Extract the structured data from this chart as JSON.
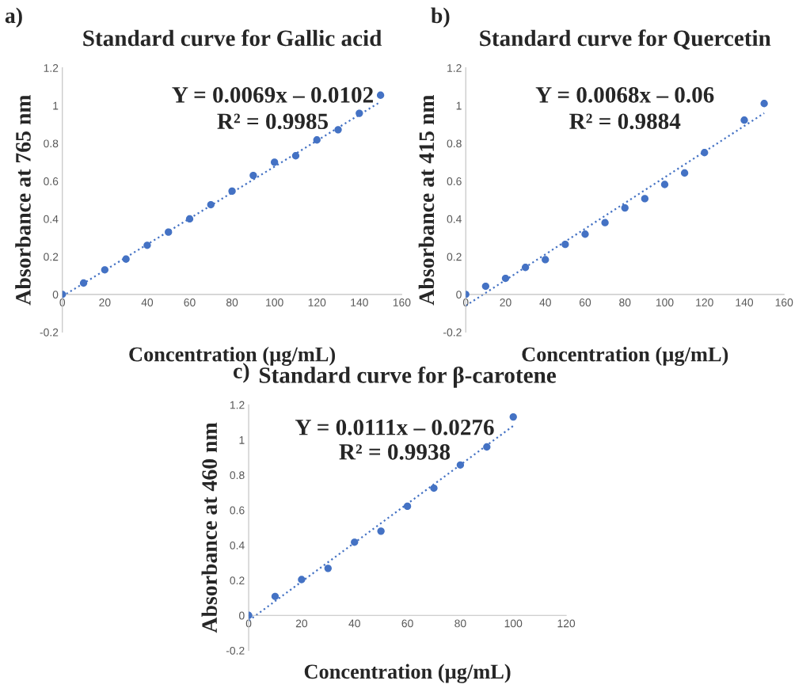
{
  "chart_data": [
    {
      "type": "scatter",
      "title": "Standard curve for Gallic acid",
      "xlabel": "Concentration (µg/mL)",
      "ylabel": "Absorbance at 765 nm",
      "annotations": [
        "a)",
        "Y = 0.0069x – 0.0102",
        "R² = 0.9985"
      ],
      "series": [
        {
          "color": "#4472c4",
          "marker": "circle",
          "x": [
            0,
            10,
            20,
            30,
            40,
            50,
            60,
            70,
            80,
            90,
            100,
            110,
            120,
            130,
            140,
            150
          ],
          "values": [
            0,
            0.06,
            0.13,
            0.187,
            0.26,
            0.33,
            0.4,
            0.475,
            0.547,
            0.63,
            0.7,
            0.734,
            0.818,
            0.872,
            0.959,
            1.055
          ]
        },
        {
          "type": "line",
          "color": "#4472c4",
          "line_style": "dotted",
          "x": [
            0,
            150
          ],
          "values": [
            -0.01,
            1.02
          ]
        }
      ],
      "xlim": [
        0,
        160
      ],
      "xticks": [
        0,
        20,
        40,
        60,
        80,
        100,
        120,
        140,
        160
      ],
      "ylim": [
        -0.2,
        1.2
      ],
      "yticks": [
        -0.2,
        0,
        0.2,
        0.4,
        0.6,
        0.8,
        1,
        1.2
      ],
      "grid": false
    },
    {
      "type": "scatter",
      "title": "Standard curve for Quercetin",
      "xlabel": "Concentration (µg/mL)",
      "ylabel": "Absorbance at 415 nm",
      "annotations": [
        "b)",
        "Y = 0.0068x – 0.06",
        "R² = 0.9884"
      ],
      "series": [
        {
          "color": "#4472c4",
          "marker": "circle",
          "x": [
            0,
            10,
            20,
            30,
            40,
            50,
            60,
            70,
            80,
            90,
            100,
            110,
            120,
            140,
            150
          ],
          "values": [
            0,
            0.043,
            0.085,
            0.143,
            0.184,
            0.265,
            0.319,
            0.38,
            0.458,
            0.507,
            0.582,
            0.643,
            0.751,
            0.923,
            1.011
          ]
        },
        {
          "type": "line",
          "color": "#4472c4",
          "line_style": "dotted",
          "x": [
            0,
            150
          ],
          "values": [
            -0.06,
            0.96
          ]
        }
      ],
      "xlim": [
        0,
        160
      ],
      "xticks": [
        0,
        20,
        40,
        60,
        80,
        100,
        120,
        140,
        160
      ],
      "ylim": [
        -0.2,
        1.2
      ],
      "yticks": [
        -0.2,
        0,
        0.2,
        0.4,
        0.6,
        0.8,
        1,
        1.2
      ],
      "grid": false
    },
    {
      "type": "scatter",
      "title": "Standard curve for β-carotene",
      "xlabel": "Concentration (µg/mL)",
      "ylabel": "Absorbance at 460 nm",
      "annotations": [
        "c)",
        "Y = 0.0111x – 0.0276",
        "R² = 0.9938"
      ],
      "series": [
        {
          "color": "#4472c4",
          "marker": "circle",
          "x": [
            0,
            10,
            20,
            30,
            40,
            50,
            60,
            70,
            80,
            90,
            100
          ],
          "values": [
            0,
            0.108,
            0.204,
            0.268,
            0.417,
            0.48,
            0.622,
            0.725,
            0.857,
            0.96,
            1.131
          ]
        },
        {
          "type": "line",
          "color": "#4472c4",
          "line_style": "dotted",
          "x": [
            0,
            100
          ],
          "values": [
            -0.03,
            1.08
          ]
        }
      ],
      "xlim": [
        0,
        120
      ],
      "xticks": [
        0,
        20,
        40,
        60,
        80,
        100,
        120
      ],
      "ylim": [
        -0.2,
        1.2
      ],
      "yticks": [
        -0.2,
        0,
        0.2,
        0.4,
        0.6,
        0.8,
        1,
        1.2
      ],
      "grid": false
    }
  ]
}
